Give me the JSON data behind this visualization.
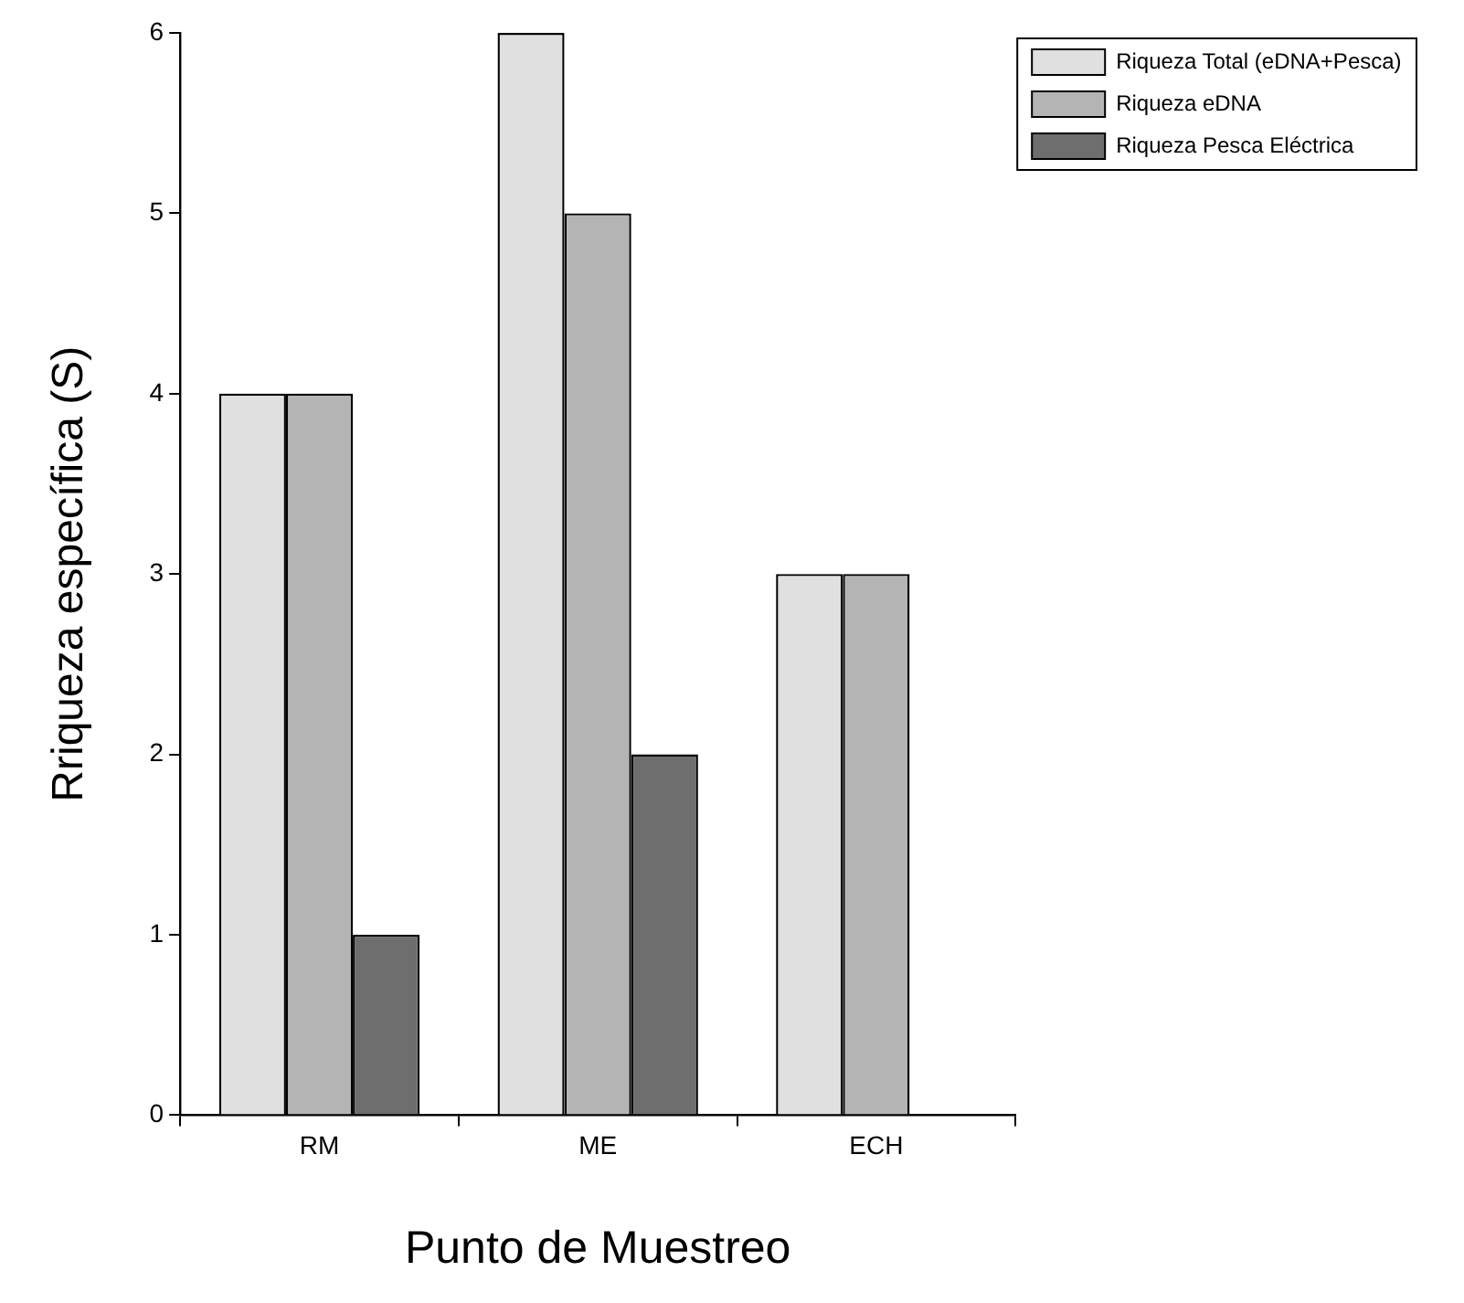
{
  "chart_data": {
    "type": "bar",
    "xlabel": "Punto de Muestreo",
    "ylabel": "Rriqueza específica (S)",
    "categories": [
      "RM",
      "ME",
      "ECH"
    ],
    "series": [
      {
        "name": "Riqueza Total (eDNA+Pesca)",
        "color": "#e0e0e0",
        "values": [
          4,
          6,
          3
        ]
      },
      {
        "name": "Riqueza eDNA",
        "color": "#b4b4b4",
        "values": [
          4,
          5,
          3
        ]
      },
      {
        "name": "Riqueza Pesca Eléctrica",
        "color": "#6e6e6e",
        "values": [
          1,
          2,
          null
        ]
      }
    ],
    "ylim": [
      0,
      6
    ],
    "yticks": [
      0,
      1,
      2,
      3,
      4,
      5,
      6
    ],
    "grid": false,
    "legend": "top right"
  }
}
